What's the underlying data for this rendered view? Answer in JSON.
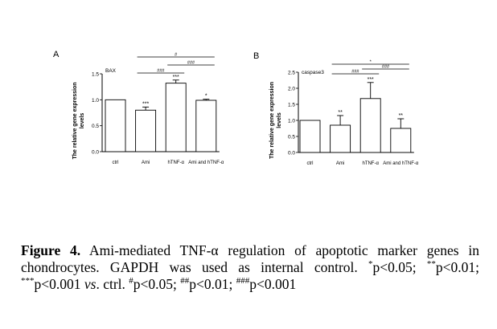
{
  "chart_data": [
    {
      "type": "bar",
      "panel_label": "A",
      "title": "BAX",
      "ylabel": "The relative gene expression levels",
      "categories": [
        "ctrl",
        "Ami",
        "hTNF-α",
        "Ami and hTNF-α"
      ],
      "values": [
        1.0,
        0.8,
        1.32,
        0.99
      ],
      "errors": [
        0.0,
        0.06,
        0.06,
        0.02
      ],
      "ylim": [
        0,
        1.5
      ],
      "yticks": [
        "0.0",
        "0.5",
        "1.0",
        "1.5"
      ],
      "bar_labels": [
        "",
        "***",
        "***",
        "*"
      ],
      "significance_brackets": [
        {
          "from": 1,
          "to": 2,
          "label": "###"
        },
        {
          "from": 2,
          "to": 3,
          "label": "###"
        },
        {
          "from": 1,
          "to": 3,
          "label": "#"
        }
      ]
    },
    {
      "type": "bar",
      "panel_label": "B",
      "title": "caspase3",
      "ylabel": "The relative gene expression levels",
      "categories": [
        "ctrl",
        "Ami",
        "hTNF-α",
        "Ami and hTNF-α"
      ],
      "values": [
        1.0,
        0.85,
        1.68,
        0.75
      ],
      "errors": [
        0.0,
        0.3,
        0.5,
        0.3
      ],
      "ylim": [
        0,
        2.5
      ],
      "yticks": [
        "0.0",
        "0.5",
        "1.0",
        "1.5",
        "2.0",
        "2.5"
      ],
      "bar_labels": [
        "",
        "**",
        "***",
        "**"
      ],
      "significance_brackets": [
        {
          "from": 1,
          "to": 2,
          "label": "###"
        },
        {
          "from": 2,
          "to": 3,
          "label": "###"
        },
        {
          "from": 1,
          "to": 3,
          "label": "*"
        }
      ]
    }
  ],
  "caption": {
    "figure_label": "Figure 4.",
    "text1": "Ami-mediated TNF-α regulation of apoptotic marker genes in chondrocytes. GAPDH was used as internal control. ",
    "sup1": "*",
    "text2": "p<0.05; ",
    "sup2": "**",
    "text3": "p<0.01; ",
    "sup3": "***",
    "text4": "p<0.001 ",
    "vs": "vs",
    "text5": ". ctrl. ",
    "sup4": "#",
    "text6": "p<0.05; ",
    "sup5": "##",
    "text7": "p<0.01; ",
    "sup6": "###",
    "text8": "p<0.001"
  }
}
